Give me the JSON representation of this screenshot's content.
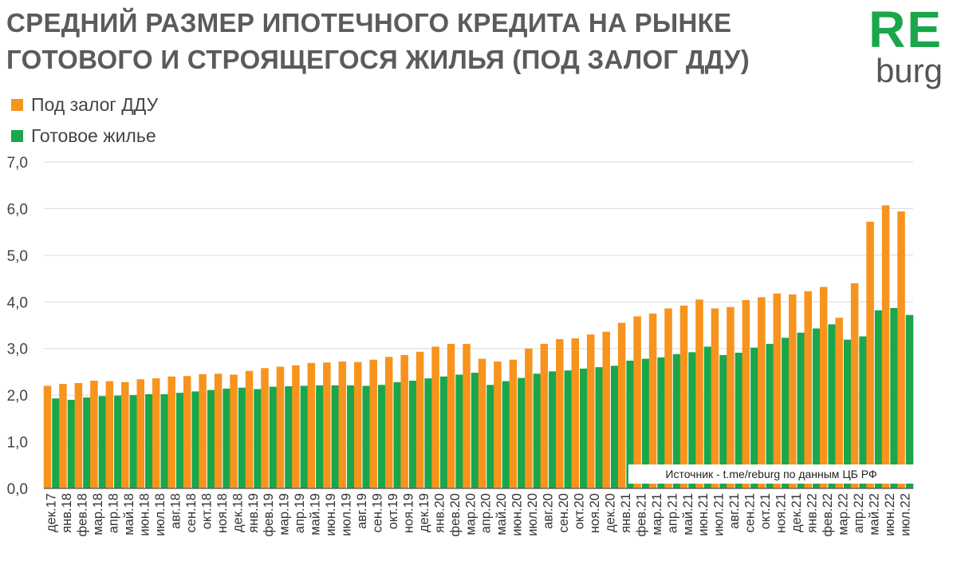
{
  "logo": {
    "re": "RE",
    "burg": "burg"
  },
  "colors": {
    "series_ddu": "#f7941d",
    "series_ready": "#1aa64a",
    "grid": "#d9d9d9",
    "axis": "#555555"
  },
  "chart_data": {
    "type": "bar",
    "title": "СРЕДНИЙ РАЗМЕР ИПОТЕЧНОГО КРЕДИТА НА РЫНКЕ ГОТОВОГО И СТРОЯЩЕГОСЯ ЖИЛЬЯ (ПОД ЗАЛОГ ДДУ)",
    "xlabel": "",
    "ylabel": "",
    "ylim": [
      0,
      7
    ],
    "yticks": [
      "0,0",
      "1,0",
      "2,0",
      "3,0",
      "4,0",
      "5,0",
      "6,0",
      "7,0"
    ],
    "grid": true,
    "legend_position": "top-left",
    "source": "Источник - t.me/reburg по данным ЦБ РФ",
    "categories": [
      "дек.17",
      "янв.18",
      "фев.18",
      "мар.18",
      "апр.18",
      "май.18",
      "июн.18",
      "июл.18",
      "авг.18",
      "сен.18",
      "окт.18",
      "ноя.18",
      "дек.18",
      "янв.19",
      "фев.19",
      "мар.19",
      "апр.19",
      "май.19",
      "июн.19",
      "июл.19",
      "авг.19",
      "сен.19",
      "окт.19",
      "ноя.19",
      "дек.19",
      "янв.20",
      "фев.20",
      "мар.20",
      "апр.20",
      "май.20",
      "июн.20",
      "июл.20",
      "авг.20",
      "сен.20",
      "окт.20",
      "ноя.20",
      "дек.20",
      "янв.21",
      "фев.21",
      "мар.21",
      "апр.21",
      "май.21",
      "июн.21",
      "июл.21",
      "авг.21",
      "сен.21",
      "окт.21",
      "ноя.21",
      "дек.21",
      "янв.22",
      "фев.22",
      "мар.22",
      "апр.22",
      "май.22",
      "июн.22",
      "июл.22"
    ],
    "series": [
      {
        "name": "Под залог ДДУ",
        "color": "#f7941d",
        "values": [
          2.2,
          2.24,
          2.26,
          2.31,
          2.3,
          2.28,
          2.34,
          2.36,
          2.4,
          2.41,
          2.45,
          2.46,
          2.44,
          2.52,
          2.58,
          2.61,
          2.64,
          2.69,
          2.7,
          2.72,
          2.71,
          2.76,
          2.82,
          2.86,
          2.93,
          3.04,
          3.1,
          3.1,
          2.78,
          2.72,
          2.76,
          3.0,
          3.1,
          3.2,
          3.22,
          3.3,
          3.36,
          3.55,
          3.69,
          3.75,
          3.86,
          3.92,
          4.05,
          3.86,
          3.89,
          4.04,
          4.1,
          4.18,
          4.16,
          4.23,
          4.32,
          3.66,
          4.4,
          5.72,
          6.07,
          5.94
        ]
      },
      {
        "name": "Готовое жилье",
        "color": "#1aa64a",
        "values": [
          1.93,
          1.9,
          1.95,
          1.98,
          1.99,
          2.0,
          2.02,
          2.02,
          2.05,
          2.08,
          2.11,
          2.14,
          2.16,
          2.13,
          2.18,
          2.19,
          2.2,
          2.21,
          2.21,
          2.21,
          2.2,
          2.22,
          2.28,
          2.31,
          2.36,
          2.4,
          2.44,
          2.48,
          2.22,
          2.3,
          2.37,
          2.46,
          2.51,
          2.53,
          2.57,
          2.6,
          2.63,
          2.74,
          2.78,
          2.81,
          2.88,
          2.92,
          3.04,
          2.86,
          2.91,
          3.02,
          3.1,
          3.23,
          3.34,
          3.43,
          3.52,
          3.19,
          3.26,
          3.82,
          3.87,
          3.72
        ]
      }
    ]
  }
}
